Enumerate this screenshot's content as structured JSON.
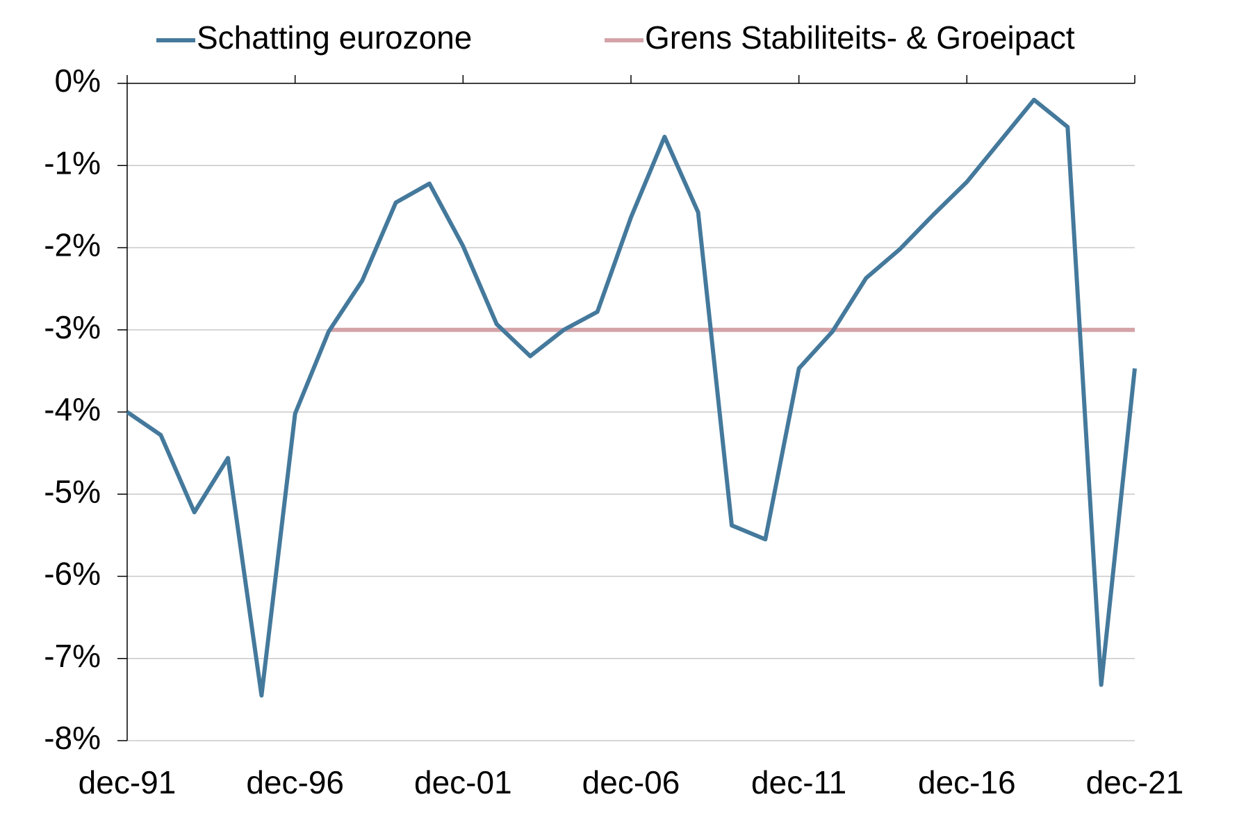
{
  "chart_data": {
    "type": "line",
    "x": [
      "dec-91",
      null,
      null,
      null,
      null,
      "dec-96",
      null,
      null,
      null,
      null,
      "dec-01",
      null,
      null,
      null,
      null,
      "dec-06",
      null,
      null,
      null,
      null,
      "dec-11",
      null,
      null,
      null,
      null,
      "dec-16",
      null,
      null,
      null,
      null,
      "dec-21"
    ],
    "series": [
      {
        "name": "Schatting eurozone",
        "color": "#44799c",
        "values": [
          -4.0,
          -4.28,
          -5.22,
          -4.56,
          -7.45,
          -4.02,
          -3.02,
          -2.4,
          -1.45,
          -1.22,
          -1.98,
          -2.93,
          -3.32,
          -3.0,
          -2.78,
          -1.63,
          -0.65,
          -1.57,
          -5.38,
          -5.55,
          -3.47,
          -3.02,
          -2.37,
          -2.02,
          -1.6,
          -1.2,
          -0.7,
          -0.2,
          -0.53,
          -7.32,
          -3.47
        ]
      },
      {
        "name": "Grens Stabiliteits- & Groeipact",
        "color": "#d3a3a8",
        "values": [
          null,
          null,
          null,
          null,
          null,
          null,
          -3,
          -3,
          -3,
          -3,
          -3,
          -3,
          -3,
          -3,
          -3,
          -3,
          -3,
          -3,
          -3,
          -3,
          -3,
          -3,
          -3,
          -3,
          -3,
          -3,
          -3,
          -3,
          -3,
          -3,
          -3
        ]
      }
    ],
    "ylim": [
      -8,
      0
    ],
    "yticks": [
      {
        "value": -8,
        "label": "-8%"
      },
      {
        "value": -7,
        "label": "-7%"
      },
      {
        "value": -6,
        "label": "-6%"
      },
      {
        "value": -5,
        "label": "-5%"
      },
      {
        "value": -4,
        "label": "-4%"
      },
      {
        "value": -3,
        "label": "-3%"
      },
      {
        "value": -2,
        "label": "-2%"
      },
      {
        "value": -1,
        "label": "-1%"
      },
      {
        "value": 0,
        "label": "0%"
      }
    ],
    "grid": true,
    "legend": "top"
  }
}
